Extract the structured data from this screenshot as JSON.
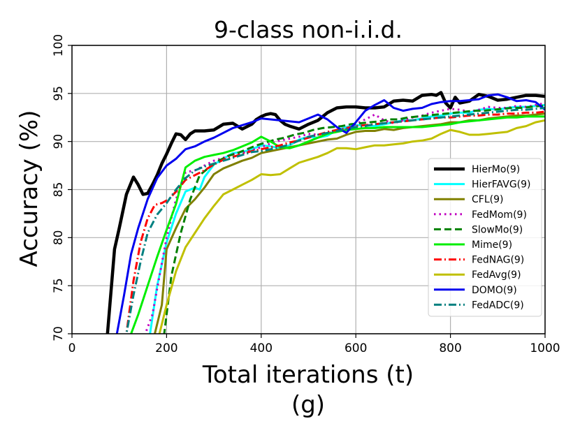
{
  "chart_data": {
    "type": "line",
    "title": "9-class non-i.i.d.",
    "xlabel": "Total iterations (t)",
    "caption": "(g)",
    "ylabel": "Accuracy (%)",
    "xlim": [
      0,
      1000
    ],
    "ylim": [
      70,
      100
    ],
    "xticks": [
      "0",
      "200",
      "400",
      "600",
      "800",
      "1000"
    ],
    "yticks": [
      "70",
      "75",
      "80",
      "85",
      "90",
      "95",
      "100"
    ],
    "grid": true,
    "legend_position": "right",
    "series": [
      {
        "name": "HierMo(9)",
        "color": "#000000",
        "dash": "solid",
        "width": 4.5,
        "x": [
          60,
          75,
          90,
          100,
          115,
          130,
          140,
          150,
          160,
          170,
          180,
          190,
          200,
          210,
          220,
          230,
          240,
          250,
          260,
          270,
          280,
          300,
          320,
          340,
          360,
          380,
          390,
          400,
          410,
          420,
          430,
          440,
          450,
          460,
          480,
          500,
          520,
          540,
          560,
          580,
          600,
          620,
          640,
          660,
          680,
          700,
          720,
          740,
          760,
          770,
          780,
          790,
          800,
          810,
          820,
          840,
          860,
          880,
          900,
          920,
          940,
          960,
          980,
          1000
        ],
        "y": [
          60,
          70,
          78.8,
          81,
          84.5,
          86.3,
          85.5,
          84.5,
          84.6,
          85.5,
          86.5,
          87.7,
          88.7,
          89.8,
          90.8,
          90.7,
          90.2,
          90.8,
          91.1,
          91.1,
          91.1,
          91.2,
          91.8,
          91.9,
          91.3,
          91.8,
          92.3,
          92.6,
          92.8,
          92.9,
          92.8,
          92.2,
          91.8,
          91.6,
          91.3,
          91.8,
          92.2,
          93,
          93.5,
          93.6,
          93.6,
          93.5,
          93.5,
          93.6,
          94.2,
          94.3,
          94.2,
          94.8,
          94.9,
          94.8,
          95.1,
          94,
          93.5,
          94.6,
          94,
          94.2,
          94.9,
          94.7,
          94.3,
          94.4,
          94.6,
          94.8,
          94.8,
          94.7
        ]
      },
      {
        "name": "HierFAVG(9)",
        "color": "#00ffff",
        "dash": "solid",
        "width": 3,
        "x": [
          150,
          165,
          180,
          200,
          220,
          240,
          260,
          270,
          280,
          300,
          320,
          340,
          360,
          380,
          400,
          420,
          440,
          460,
          480,
          500,
          520,
          540,
          560,
          580,
          600,
          620,
          640,
          660,
          680,
          700,
          720,
          740,
          760,
          780,
          800,
          820,
          840,
          860,
          880,
          900,
          920,
          940,
          960,
          980,
          1000
        ],
        "y": [
          60,
          70,
          75,
          79.5,
          82.5,
          84.8,
          85.2,
          85,
          86.3,
          87.6,
          88.2,
          88.8,
          88.9,
          89.2,
          89.6,
          89.5,
          89.3,
          89.6,
          90.2,
          90.5,
          90.4,
          90.6,
          91.2,
          91.5,
          91.7,
          91.7,
          91.6,
          91.8,
          92,
          92.2,
          92.2,
          92.4,
          92.6,
          92.7,
          92.9,
          93,
          93,
          93.3,
          93.4,
          93.3,
          93.5,
          93.6,
          93.6,
          93.7,
          93.8
        ]
      },
      {
        "name": "CFL(9)",
        "color": "#808000",
        "dash": "solid",
        "width": 3,
        "x": [
          160,
          175,
          190,
          200,
          220,
          240,
          260,
          280,
          300,
          320,
          340,
          360,
          380,
          400,
          420,
          440,
          460,
          480,
          500,
          520,
          540,
          560,
          580,
          600,
          620,
          640,
          660,
          680,
          700,
          720,
          740,
          760,
          780,
          800,
          820,
          840,
          860,
          880,
          900,
          920,
          940,
          960,
          980,
          1000
        ],
        "y": [
          60,
          70,
          73,
          78.8,
          81,
          83,
          84,
          85.2,
          86.6,
          87.2,
          87.6,
          88,
          88.3,
          88.8,
          89,
          89.2,
          89.4,
          89.6,
          89.8,
          90,
          90.2,
          90.3,
          90.7,
          91,
          91.1,
          91.1,
          91.3,
          91.2,
          91.4,
          91.5,
          91.6,
          91.7,
          91.8,
          92,
          92,
          92.2,
          92.2,
          92.4,
          92.5,
          92.6,
          92.7,
          92.7,
          92.8,
          92.9
        ]
      },
      {
        "name": "FedMom(9)",
        "color": "#c000c0",
        "dash": "dot",
        "width": 3,
        "x": [
          140,
          155,
          170,
          185,
          200,
          220,
          240,
          260,
          280,
          300,
          320,
          340,
          360,
          380,
          400,
          420,
          440,
          460,
          480,
          500,
          520,
          540,
          560,
          580,
          600,
          620,
          640,
          660,
          680,
          700,
          720,
          740,
          760,
          780,
          800,
          820,
          840,
          860,
          880,
          900,
          920,
          940,
          960,
          980,
          1000
        ],
        "y": [
          60,
          70,
          72,
          76,
          80,
          84,
          86.8,
          87,
          87.5,
          88,
          88.3,
          88.7,
          88.8,
          89.1,
          89.4,
          89.8,
          90.1,
          90.3,
          90.5,
          90.8,
          90.7,
          90.9,
          91,
          91.3,
          91.8,
          92.3,
          92.8,
          92.2,
          91.9,
          92.2,
          92.5,
          92.7,
          93,
          93.2,
          93.4,
          93.3,
          93.1,
          93.3,
          93.6,
          93.5,
          93.5,
          93.7,
          93.6,
          93.8,
          94
        ]
      },
      {
        "name": "SlowMo(9)",
        "color": "#008000",
        "dash": "dash",
        "width": 3,
        "x": [
          180,
          195,
          210,
          230,
          250,
          270,
          290,
          310,
          330,
          350,
          370,
          390,
          410,
          430,
          450,
          470,
          490,
          510,
          530,
          550,
          570,
          590,
          610,
          630,
          650,
          670,
          690,
          710,
          730,
          750,
          770,
          790,
          810,
          830,
          850,
          870,
          890,
          910,
          930,
          950,
          970,
          990,
          1000
        ],
        "y": [
          60,
          70,
          76,
          80.5,
          84,
          86.5,
          87.3,
          88,
          88.5,
          88.8,
          89.2,
          89.6,
          89.9,
          90.2,
          90.4,
          90.7,
          90.9,
          91.2,
          91.4,
          91.5,
          91.6,
          91.8,
          91.9,
          92,
          92.1,
          92.3,
          92.3,
          92.5,
          92.6,
          92.7,
          92.8,
          92.9,
          93,
          93.1,
          93.2,
          93.2,
          93.3,
          93.4,
          93.5,
          93.5,
          93.6,
          93.7,
          93.7
        ]
      },
      {
        "name": "Mime(9)",
        "color": "#00ee00",
        "dash": "solid",
        "width": 3,
        "x": [
          110,
          125,
          140,
          160,
          180,
          200,
          220,
          240,
          260,
          280,
          300,
          320,
          340,
          360,
          380,
          400,
          420,
          440,
          460,
          480,
          500,
          520,
          540,
          560,
          580,
          600,
          620,
          640,
          660,
          680,
          700,
          720,
          740,
          760,
          780,
          800,
          820,
          840,
          860,
          880,
          900,
          920,
          940,
          960,
          980,
          1000
        ],
        "y": [
          60,
          70,
          72,
          75,
          78,
          80.8,
          83.5,
          87.3,
          88,
          88.4,
          88.6,
          88.8,
          89.1,
          89.5,
          89.9,
          90.5,
          90,
          89.4,
          89.3,
          89.6,
          90,
          90.4,
          90.8,
          91,
          91.2,
          91.3,
          91.4,
          91.4,
          91.5,
          91.5,
          91.5,
          91.5,
          91.5,
          91.6,
          91.7,
          91.8,
          92,
          92.1,
          92.2,
          92.3,
          92.4,
          92.5,
          92.5,
          92.6,
          92.6,
          92.6
        ]
      },
      {
        "name": "FedNAG(9)",
        "color": "#ff0000",
        "dash": "dashdot",
        "width": 3,
        "x": [
          100,
          115,
          130,
          145,
          160,
          175,
          190,
          205,
          220,
          240,
          260,
          280,
          300,
          320,
          340,
          360,
          380,
          400,
          420,
          440,
          460,
          480,
          500,
          520,
          540,
          560,
          580,
          600,
          620,
          640,
          660,
          680,
          700,
          720,
          740,
          760,
          780,
          800,
          820,
          840,
          860,
          880,
          900,
          920,
          940,
          960,
          980,
          1000
        ],
        "y": [
          60,
          70,
          75.5,
          79.5,
          82,
          83.4,
          83.6,
          84,
          84.8,
          86,
          86.5,
          87,
          87.6,
          88.1,
          88.4,
          88.7,
          89,
          89.2,
          89.4,
          89.6,
          89.9,
          90.1,
          90.4,
          90.7,
          91,
          91.2,
          91.4,
          91.6,
          91.7,
          91.8,
          91.9,
          92,
          92.1,
          92.2,
          92.3,
          92.4,
          92.5,
          92.5,
          92.6,
          92.7,
          92.7,
          92.8,
          92.8,
          92.9,
          92.9,
          93,
          93,
          93.1
        ]
      },
      {
        "name": "FedAvg(9)",
        "color": "#c0c000",
        "dash": "solid",
        "width": 3,
        "x": [
          170,
          185,
          200,
          220,
          240,
          260,
          280,
          300,
          320,
          340,
          360,
          380,
          400,
          420,
          440,
          460,
          480,
          500,
          520,
          540,
          560,
          580,
          600,
          620,
          640,
          660,
          680,
          700,
          720,
          740,
          760,
          780,
          800,
          820,
          840,
          860,
          880,
          900,
          920,
          940,
          960,
          980,
          1000
        ],
        "y": [
          60,
          70,
          73,
          76.5,
          79,
          80.5,
          82,
          83.3,
          84.5,
          85,
          85.5,
          86,
          86.6,
          86.5,
          86.6,
          87.2,
          87.8,
          88.1,
          88.4,
          88.8,
          89.3,
          89.3,
          89.2,
          89.4,
          89.6,
          89.6,
          89.7,
          89.8,
          90,
          90.1,
          90.3,
          90.8,
          91.2,
          91,
          90.7,
          90.7,
          90.8,
          90.9,
          91,
          91.4,
          91.6,
          92,
          92.2
        ]
      },
      {
        "name": "DOMO(9)",
        "color": "#0000ee",
        "dash": "solid",
        "width": 3,
        "x": [
          80,
          95,
          110,
          125,
          140,
          160,
          180,
          200,
          220,
          240,
          260,
          280,
          300,
          320,
          340,
          360,
          380,
          400,
          420,
          440,
          460,
          480,
          500,
          520,
          540,
          560,
          580,
          600,
          620,
          640,
          660,
          680,
          700,
          720,
          740,
          760,
          780,
          800,
          820,
          840,
          860,
          880,
          900,
          920,
          940,
          960,
          980,
          1000
        ],
        "y": [
          60,
          70,
          74,
          78.3,
          81,
          84,
          86.2,
          87.5,
          88.2,
          89.2,
          89.5,
          90,
          90.4,
          90.9,
          91.4,
          91.7,
          92,
          92.4,
          92.3,
          92.2,
          92.1,
          92,
          92.4,
          92.8,
          92.3,
          91.5,
          90.9,
          92,
          93.2,
          93.8,
          94.3,
          93.5,
          93.2,
          93.4,
          93.5,
          93.9,
          94.1,
          94.2,
          94.2,
          94.3,
          94.4,
          94.8,
          94.9,
          94.6,
          94.2,
          94.3,
          94.1,
          93.3
        ]
      },
      {
        "name": "FedADC(9)",
        "color": "#008080",
        "dash": "dashdot",
        "width": 3,
        "x": [
          100,
          115,
          130,
          145,
          160,
          180,
          200,
          220,
          240,
          260,
          280,
          300,
          320,
          340,
          360,
          380,
          400,
          420,
          440,
          460,
          480,
          500,
          520,
          540,
          560,
          580,
          600,
          620,
          640,
          660,
          680,
          700,
          720,
          740,
          760,
          780,
          800,
          820,
          840,
          860,
          880,
          900,
          920,
          940,
          960,
          980,
          1000
        ],
        "y": [
          60,
          70,
          74,
          77.5,
          80.5,
          82.4,
          83.6,
          85,
          86.2,
          87,
          87.4,
          87.7,
          88,
          88.3,
          88.6,
          88.9,
          89,
          89.2,
          89.4,
          89.7,
          90.1,
          90.5,
          90.7,
          90.9,
          91.1,
          91.3,
          91.5,
          91.6,
          91.8,
          91.9,
          92,
          92.1,
          92.2,
          92.3,
          92.4,
          92.5,
          92.6,
          92.7,
          92.8,
          92.9,
          93,
          93.1,
          93.2,
          93.3,
          93.3,
          93.4,
          93.5
        ]
      }
    ]
  }
}
